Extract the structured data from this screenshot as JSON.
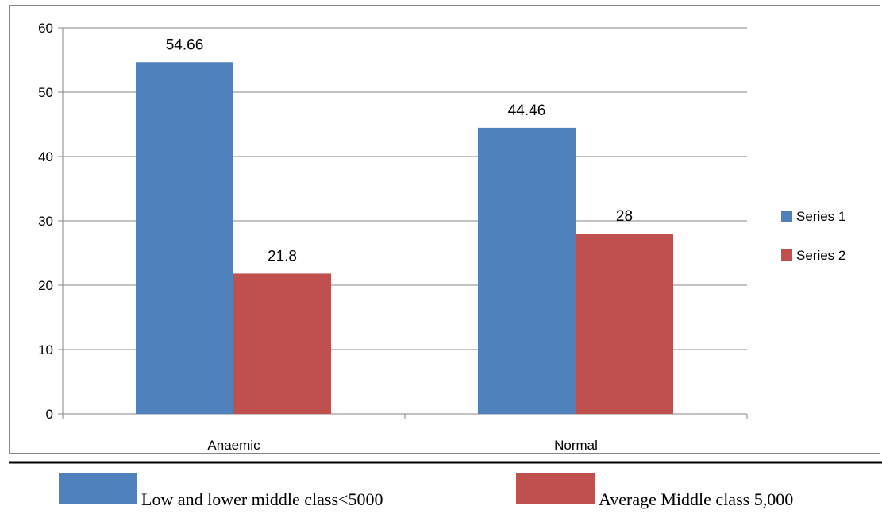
{
  "chart_data": {
    "type": "bar",
    "categories": [
      "Anaemic",
      "Normal"
    ],
    "series": [
      {
        "name": "Series 1",
        "values": [
          54.66,
          44.46
        ],
        "color": "#4F81BD"
      },
      {
        "name": "Series 2",
        "values": [
          21.8,
          28
        ],
        "color": "#C0504D"
      }
    ],
    "data_labels": [
      [
        "54.66",
        "44.46"
      ],
      [
        "21.8",
        "28"
      ]
    ],
    "yticks": [
      "0",
      "10",
      "20",
      "30",
      "40",
      "50",
      "60"
    ],
    "ylim": [
      0,
      60
    ],
    "grid": true,
    "legend_position": "right"
  },
  "bottom_legend": [
    {
      "label": "Low and lower middle class<5000",
      "color": "#4F81BD"
    },
    {
      "label": "Average Middle class 5,000",
      "color": "#C0504D"
    }
  ],
  "colors": {
    "gridline": "#868686",
    "frame": "#868686",
    "rule": "#000000"
  }
}
